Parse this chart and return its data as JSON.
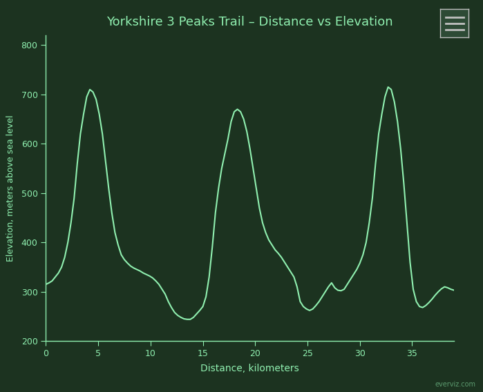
{
  "title": "Yorkshire 3 Peaks Trail – Distance vs Elevation",
  "xlabel": "Distance, kilometers",
  "ylabel": "Elevation, meters above sea level",
  "background_color": "#1c3320",
  "line_color": "#90f0b0",
  "title_color": "#90f0b0",
  "label_color": "#90f0b0",
  "tick_color": "#90f0b0",
  "spine_color": "#90f0b0",
  "xlim": [
    0,
    39
  ],
  "ylim": [
    200,
    820
  ],
  "xticks": [
    0,
    5,
    10,
    15,
    20,
    25,
    30,
    35
  ],
  "yticks": [
    200,
    300,
    400,
    500,
    600,
    700,
    800
  ],
  "distance": [
    0.0,
    0.3,
    0.6,
    0.9,
    1.2,
    1.5,
    1.8,
    2.1,
    2.4,
    2.7,
    3.0,
    3.3,
    3.6,
    3.9,
    4.2,
    4.5,
    4.8,
    5.1,
    5.4,
    5.7,
    6.0,
    6.3,
    6.6,
    6.9,
    7.2,
    7.5,
    7.8,
    8.1,
    8.4,
    8.7,
    9.0,
    9.3,
    9.6,
    9.9,
    10.2,
    10.5,
    10.8,
    11.1,
    11.4,
    11.7,
    12.0,
    12.3,
    12.6,
    12.9,
    13.2,
    13.5,
    13.8,
    14.1,
    14.4,
    14.7,
    15.0,
    15.3,
    15.6,
    15.9,
    16.2,
    16.5,
    16.8,
    17.1,
    17.4,
    17.7,
    18.0,
    18.3,
    18.6,
    18.9,
    19.2,
    19.5,
    19.8,
    20.1,
    20.4,
    20.7,
    21.0,
    21.3,
    21.6,
    21.9,
    22.2,
    22.5,
    22.8,
    23.1,
    23.4,
    23.7,
    24.0,
    24.3,
    24.6,
    24.9,
    25.2,
    25.5,
    25.8,
    26.1,
    26.4,
    26.7,
    27.0,
    27.3,
    27.6,
    27.9,
    28.2,
    28.5,
    28.8,
    29.1,
    29.4,
    29.7,
    30.0,
    30.3,
    30.6,
    30.9,
    31.2,
    31.5,
    31.8,
    32.1,
    32.4,
    32.7,
    33.0,
    33.3,
    33.6,
    33.9,
    34.2,
    34.5,
    34.8,
    35.1,
    35.4,
    35.7,
    36.0,
    36.3,
    36.6,
    36.9,
    37.2,
    37.5,
    37.8,
    38.1,
    38.4,
    38.7,
    39.0
  ],
  "elevation": [
    315,
    318,
    322,
    330,
    338,
    350,
    370,
    400,
    440,
    490,
    560,
    620,
    660,
    695,
    710,
    705,
    690,
    660,
    620,
    565,
    510,
    460,
    420,
    395,
    375,
    365,
    358,
    352,
    348,
    345,
    342,
    338,
    335,
    332,
    328,
    322,
    315,
    305,
    295,
    280,
    268,
    258,
    252,
    248,
    245,
    244,
    244,
    248,
    255,
    262,
    270,
    290,
    330,
    390,
    460,
    510,
    550,
    580,
    610,
    645,
    665,
    670,
    665,
    650,
    625,
    590,
    550,
    510,
    470,
    440,
    420,
    405,
    395,
    385,
    378,
    370,
    360,
    350,
    340,
    330,
    310,
    280,
    270,
    265,
    262,
    265,
    272,
    280,
    290,
    300,
    310,
    318,
    308,
    303,
    302,
    305,
    315,
    325,
    335,
    345,
    358,
    375,
    400,
    440,
    490,
    560,
    620,
    660,
    695,
    715,
    710,
    685,
    645,
    590,
    520,
    440,
    360,
    305,
    280,
    270,
    268,
    272,
    278,
    285,
    293,
    300,
    306,
    310,
    308,
    305,
    303
  ],
  "watermark": "everviz.com",
  "menu_color": "#2d4a35",
  "menu_border_color": "#c0c0c0",
  "menu_line_color": "#c0c0c0"
}
